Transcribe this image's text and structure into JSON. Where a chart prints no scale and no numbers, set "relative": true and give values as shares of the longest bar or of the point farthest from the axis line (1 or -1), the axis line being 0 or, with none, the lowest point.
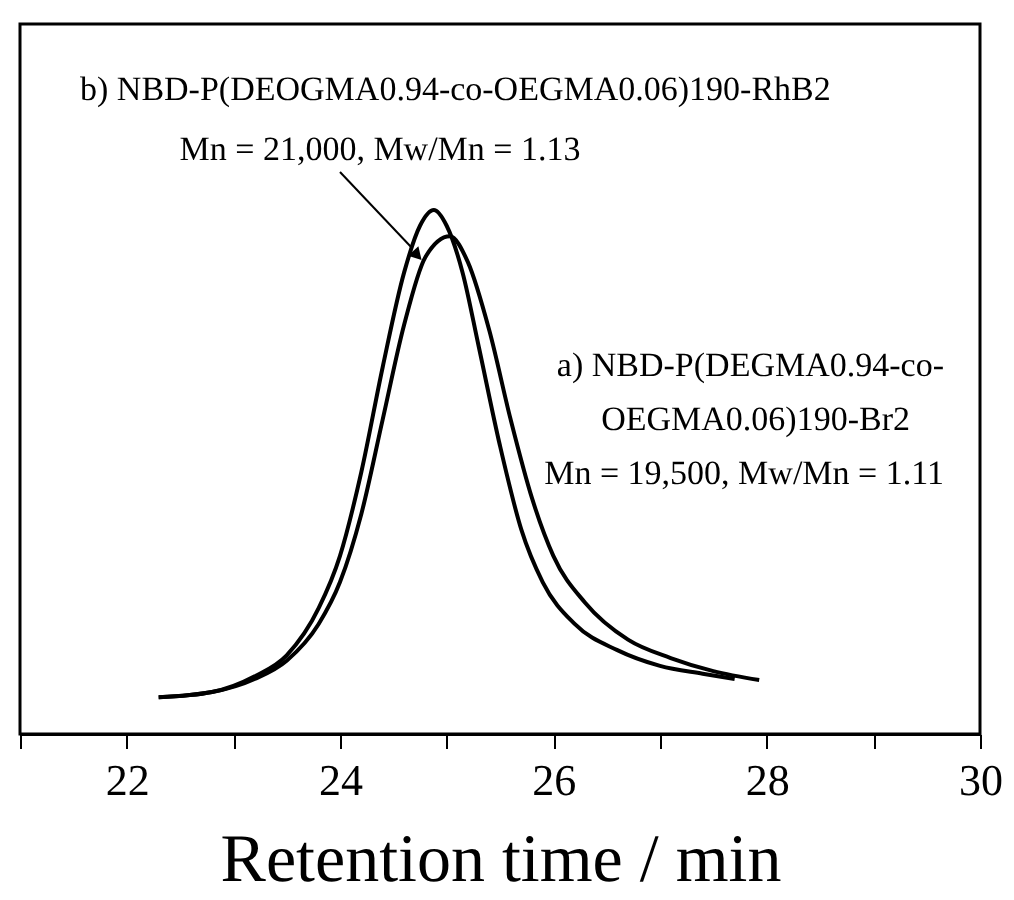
{
  "chart_data": {
    "type": "line",
    "relative": true,
    "xlabel": "Retention time / min",
    "xlim": [
      21,
      30
    ],
    "xticks": [
      {
        "value": 21,
        "label": null
      },
      22,
      {
        "value": 23,
        "label": null
      },
      24,
      {
        "value": 25,
        "label": null
      },
      26,
      {
        "value": 27,
        "label": null
      },
      28,
      {
        "value": 29,
        "label": null
      },
      30
    ],
    "grid": false,
    "marker": "none",
    "line_style": "solid",
    "annotations": [
      "b) NBD-P(DEOGMA0.94-co-OEGMA0.06)190-RhB2",
      "Mn = 21,000, Mw/Mn = 1.13",
      "a) NBD-P(DEGMA0.94-co-",
      "OEGMA0.06)190-Br2",
      "Mn = 19,500, Mw/Mn = 1.11"
    ],
    "series": [
      {
        "color": "#000000",
        "x": [
          22.3,
          22.8,
          23.2,
          23.5,
          23.8,
          24.0,
          24.2,
          24.4,
          24.6,
          24.75,
          24.88,
          25.0,
          25.15,
          25.3,
          25.5,
          25.7,
          25.9,
          26.2,
          26.6,
          27.0,
          27.4,
          27.7
        ],
        "values": [
          0.07,
          0.08,
          0.11,
          0.15,
          0.24,
          0.34,
          0.5,
          0.7,
          0.88,
          0.97,
          1.0,
          0.97,
          0.88,
          0.74,
          0.55,
          0.39,
          0.29,
          0.21,
          0.16,
          0.13,
          0.115,
          0.105
        ]
      },
      {
        "color": "#000000",
        "x": [
          22.3,
          22.8,
          23.2,
          23.5,
          23.8,
          24.0,
          24.2,
          24.4,
          24.6,
          24.8,
          25.03,
          25.2,
          25.4,
          25.6,
          25.8,
          26.0,
          26.3,
          26.7,
          27.1,
          27.5,
          27.93
        ],
        "values": [
          0.07,
          0.08,
          0.105,
          0.14,
          0.21,
          0.29,
          0.42,
          0.6,
          0.78,
          0.91,
          0.95,
          0.9,
          0.77,
          0.6,
          0.45,
          0.34,
          0.25,
          0.18,
          0.145,
          0.12,
          0.103
        ]
      }
    ]
  }
}
